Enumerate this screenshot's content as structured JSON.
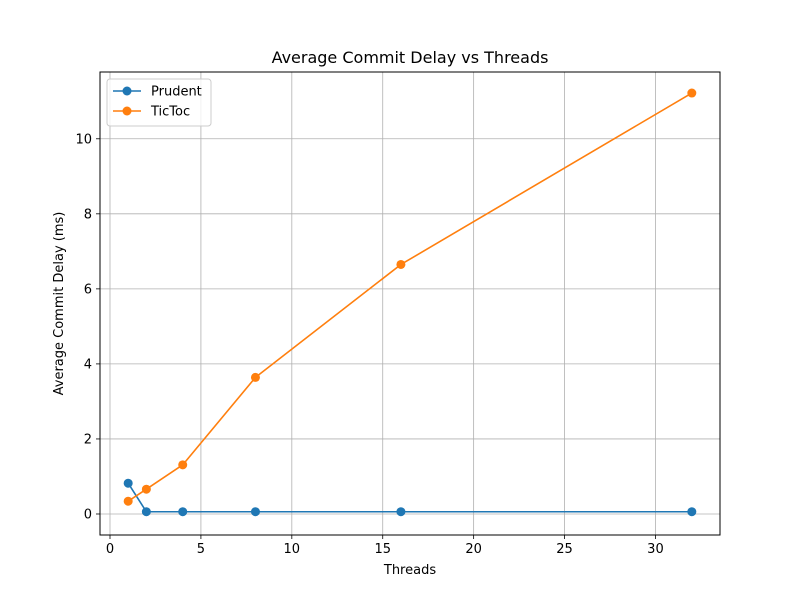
{
  "chart_data": {
    "type": "line",
    "title": "Average Commit Delay vs Threads",
    "xlabel": "Threads",
    "ylabel": "Average Commit Delay (ms)",
    "xlim": [
      -0.55,
      33.55
    ],
    "ylim": [
      -0.56,
      11.78
    ],
    "xticks": [
      0,
      5,
      10,
      15,
      20,
      25,
      30
    ],
    "yticks": [
      0,
      2,
      4,
      6,
      8,
      10
    ],
    "grid": true,
    "legend_position": "top-left",
    "series": [
      {
        "name": "Prudent",
        "color": "#1f77b4",
        "x": [
          1,
          2,
          4,
          8,
          16,
          32
        ],
        "y": [
          0.82,
          0.06,
          0.06,
          0.06,
          0.06,
          0.06
        ]
      },
      {
        "name": "TicToc",
        "color": "#ff7f0e",
        "x": [
          1,
          2,
          4,
          8,
          16,
          32
        ],
        "y": [
          0.34,
          0.66,
          1.31,
          3.64,
          6.65,
          11.22
        ]
      }
    ]
  }
}
